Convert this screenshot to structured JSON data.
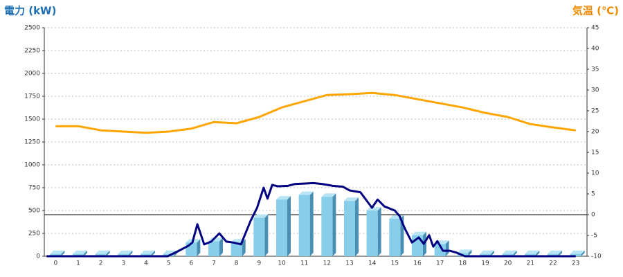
{
  "chart_data": {
    "type": "bar",
    "y_label": "電力 (kW)",
    "y2_label": "気温 (℃)",
    "categories": [
      0,
      1,
      2,
      3,
      4,
      5,
      6,
      7,
      8,
      9,
      10,
      11,
      12,
      13,
      14,
      15,
      16,
      17,
      18,
      19,
      20,
      21,
      22,
      23
    ],
    "ylim": [
      0,
      2500
    ],
    "yticks": [
      0,
      250,
      500,
      750,
      1000,
      1250,
      1500,
      1750,
      2000,
      2250,
      2500
    ],
    "y2lim": [
      -10,
      45
    ],
    "y2ticks": [
      -10,
      -5,
      0,
      5,
      10,
      15,
      20,
      25,
      30,
      35,
      40,
      45
    ],
    "grid": true,
    "series": [
      {
        "type": "bar",
        "color": "#87ceeb",
        "values": [
          25,
          25,
          25,
          25,
          25,
          25,
          150,
          165,
          150,
          420,
          620,
          670,
          650,
          605,
          500,
          410,
          230,
          135,
          35,
          25,
          25,
          25,
          25,
          25
        ]
      },
      {
        "type": "line",
        "color": "#000080",
        "x": [
          -0.4,
          4.96,
          5.4,
          5.87,
          6.05,
          6.27,
          6.57,
          6.88,
          7.24,
          7.55,
          7.85,
          8.2,
          8.61,
          8.91,
          9.2,
          9.37,
          9.58,
          9.83,
          10.28,
          10.58,
          11.04,
          11.4,
          11.8,
          12.26,
          12.71,
          13.0,
          13.48,
          13.72,
          13.99,
          14.24,
          14.54,
          15.0,
          15.21,
          15.45,
          15.76,
          16.06,
          16.28,
          16.52,
          16.7,
          16.88,
          17.13,
          17.43,
          17.74,
          18.1,
          23
        ],
        "values": [
          0,
          0,
          53,
          114,
          150,
          350,
          130,
          160,
          250,
          160,
          150,
          130,
          380,
          530,
          750,
          630,
          780,
          765,
          770,
          790,
          795,
          800,
          790,
          770,
          760,
          720,
          700,
          620,
          530,
          620,
          545,
          500,
          440,
          300,
          150,
          205,
          135,
          230,
          105,
          165,
          60,
          60,
          38,
          0,
          0
        ]
      },
      {
        "type": "line",
        "axis": "y2",
        "color": "#ffa500",
        "values": [
          21.3,
          21.3,
          20.3,
          20,
          19.7,
          20,
          20.7,
          22.3,
          22,
          23.5,
          25.8,
          27.3,
          28.8,
          29,
          29.3,
          28.8,
          27.8,
          26.8,
          25.8,
          24.5,
          23.5,
          21.8,
          21,
          20.3
        ]
      }
    ]
  }
}
